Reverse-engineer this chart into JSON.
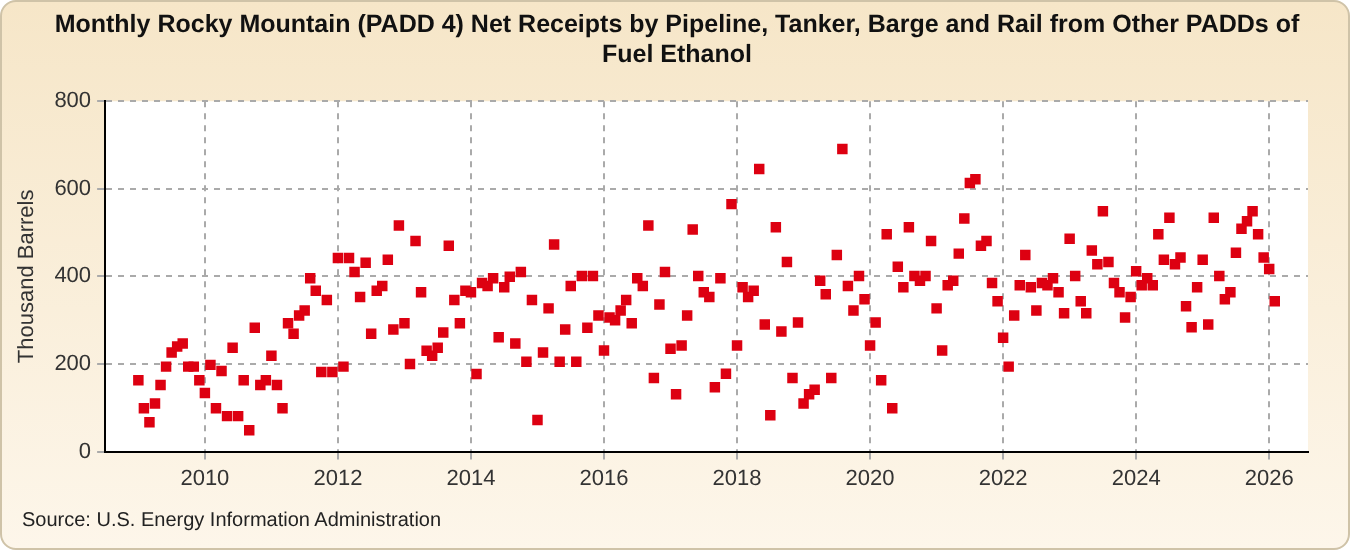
{
  "chart_data": {
    "type": "scatter",
    "title": "Monthly Rocky Mountain (PADD 4) Net Receipts by Pipeline, Tanker, Barge and Rail from Other PADDs of Fuel Ethanol",
    "ylabel": "Thousand Barrels",
    "annotations": [
      "Source: U.S. Energy Information Administration"
    ],
    "x": [
      "2009-01",
      "2009-02",
      "2009-03",
      "2009-04",
      "2009-05",
      "2009-06",
      "2009-07",
      "2009-08",
      "2009-09",
      "2009-10",
      "2009-11",
      "2009-12",
      "2010-01",
      "2010-02",
      "2010-03",
      "2010-04",
      "2010-05",
      "2010-06",
      "2010-07",
      "2010-08",
      "2010-09",
      "2010-10",
      "2010-11",
      "2010-12",
      "2011-01",
      "2011-02",
      "2011-03",
      "2011-04",
      "2011-05",
      "2011-06",
      "2011-07",
      "2011-08",
      "2011-09",
      "2011-10",
      "2011-11",
      "2011-12",
      "2012-01",
      "2012-02",
      "2012-03",
      "2012-04",
      "2012-05",
      "2012-06",
      "2012-07",
      "2012-08",
      "2012-09",
      "2012-10",
      "2012-11",
      "2012-12",
      "2013-01",
      "2013-02",
      "2013-03",
      "2013-04",
      "2013-05",
      "2013-06",
      "2013-07",
      "2013-08",
      "2013-09",
      "2013-10",
      "2013-11",
      "2013-12",
      "2014-01",
      "2014-02",
      "2014-03",
      "2014-04",
      "2014-05",
      "2014-06",
      "2014-07",
      "2014-08",
      "2014-09",
      "2014-10",
      "2014-11",
      "2014-12",
      "2015-01",
      "2015-02",
      "2015-03",
      "2015-04",
      "2015-05",
      "2015-06",
      "2015-07",
      "2015-08",
      "2015-09",
      "2015-10",
      "2015-11",
      "2015-12",
      "2016-01",
      "2016-02",
      "2016-03",
      "2016-04",
      "2016-05",
      "2016-06",
      "2016-07",
      "2016-08",
      "2016-09",
      "2016-10",
      "2016-11",
      "2016-12",
      "2017-01",
      "2017-02",
      "2017-03",
      "2017-04",
      "2017-05",
      "2017-06",
      "2017-07",
      "2017-08",
      "2017-09",
      "2017-10",
      "2017-11",
      "2017-12",
      "2018-01",
      "2018-02",
      "2018-03",
      "2018-04",
      "2018-05",
      "2018-06",
      "2018-07",
      "2018-08",
      "2018-09",
      "2018-10",
      "2018-11",
      "2018-12",
      "2019-01",
      "2019-02",
      "2019-03",
      "2019-04",
      "2019-05",
      "2019-06",
      "2019-07",
      "2019-08",
      "2019-09",
      "2019-10",
      "2019-11",
      "2019-12",
      "2020-01",
      "2020-02",
      "2020-03",
      "2020-04",
      "2020-05",
      "2020-06",
      "2020-07",
      "2020-08",
      "2020-09",
      "2020-10",
      "2020-11",
      "2020-12",
      "2021-01",
      "2021-02",
      "2021-03",
      "2021-04",
      "2021-05",
      "2021-06",
      "2021-07",
      "2021-08",
      "2021-09",
      "2021-10",
      "2021-11",
      "2021-12",
      "2022-01",
      "2022-02",
      "2022-03",
      "2022-04",
      "2022-05",
      "2022-06",
      "2022-07",
      "2022-08",
      "2022-09",
      "2022-10",
      "2022-11",
      "2022-12",
      "2023-01",
      "2023-02",
      "2023-03",
      "2023-04",
      "2023-05",
      "2023-06",
      "2023-07",
      "2023-08",
      "2023-09",
      "2023-10",
      "2023-11",
      "2023-12",
      "2024-01",
      "2024-02",
      "2024-03",
      "2024-04",
      "2024-05",
      "2024-06",
      "2024-07",
      "2024-08",
      "2024-09",
      "2024-10",
      "2024-11",
      "2024-12",
      "2025-01",
      "2025-02",
      "2025-03",
      "2025-04",
      "2025-05",
      "2025-06",
      "2025-07",
      "2025-08",
      "2025-09",
      "2025-10",
      "2025-11",
      "2025-12",
      "2026-01",
      "2026-02"
    ],
    "series": [
      {
        "color": "#dd0011",
        "values": [
          163,
          99,
          67,
          110,
          152,
          194,
          226,
          240,
          247,
          194,
          194,
          163,
          134,
          198,
          99,
          184,
          81,
          237,
          81,
          163,
          49,
          283,
          152,
          163,
          219,
          152,
          99,
          293,
          269,
          311,
          322,
          396,
          367,
          182,
          346,
          182,
          442,
          194,
          442,
          410,
          353,
          431,
          269,
          367,
          378,
          438,
          279,
          516,
          293,
          200,
          481,
          364,
          230,
          219,
          237,
          272,
          470,
          346,
          293,
          367,
          364,
          177,
          385,
          378,
          396,
          261,
          375,
          399,
          247,
          410,
          205,
          346,
          72,
          226,
          327,
          473,
          205,
          279,
          378,
          205,
          401,
          283,
          401,
          311,
          231,
          306,
          300,
          322,
          346,
          293,
          396,
          378,
          516,
          168,
          336,
          410,
          235,
          131,
          242,
          311,
          507,
          401,
          364,
          353,
          147,
          396,
          178,
          565,
          242,
          375,
          353,
          367,
          645,
          290,
          83,
          512,
          274,
          433,
          168,
          295,
          110,
          131,
          141,
          390,
          359,
          168,
          449,
          691,
          378,
          322,
          401,
          348,
          242,
          295,
          163,
          496,
          99,
          422,
          375,
          512,
          401,
          390,
          401,
          481,
          327,
          231,
          380,
          390,
          452,
          532,
          613,
          622,
          470,
          481,
          385,
          343,
          260,
          194,
          311,
          380,
          449,
          375,
          322,
          385,
          380,
          396,
          364,
          316,
          486,
          401,
          343,
          316,
          459,
          428,
          549,
          433,
          385,
          364,
          306,
          353,
          412,
          380,
          396,
          380,
          496,
          438,
          534,
          428,
          443,
          332,
          284,
          375,
          438,
          290,
          534,
          401,
          348,
          364,
          454,
          509,
          526,
          549,
          496,
          443,
          417,
          343
        ]
      }
    ],
    "xlim": [
      "2008-07",
      "2026-08"
    ],
    "xticks": [
      {
        "value": "2010",
        "label": "2010"
      },
      {
        "value": "2012",
        "label": "2012"
      },
      {
        "value": "2014",
        "label": "2014"
      },
      {
        "value": "2016",
        "label": "2016"
      },
      {
        "value": "2018",
        "label": "2018"
      },
      {
        "value": "2020",
        "label": "2020"
      },
      {
        "value": "2022",
        "label": "2022"
      },
      {
        "value": "2024",
        "label": "2024"
      },
      {
        "value": "2026",
        "label": "2026"
      }
    ],
    "ylim": [
      0,
      800
    ],
    "yticks": [
      0,
      200,
      400,
      600,
      800
    ],
    "grid": true,
    "marker": "square",
    "legend": false
  }
}
